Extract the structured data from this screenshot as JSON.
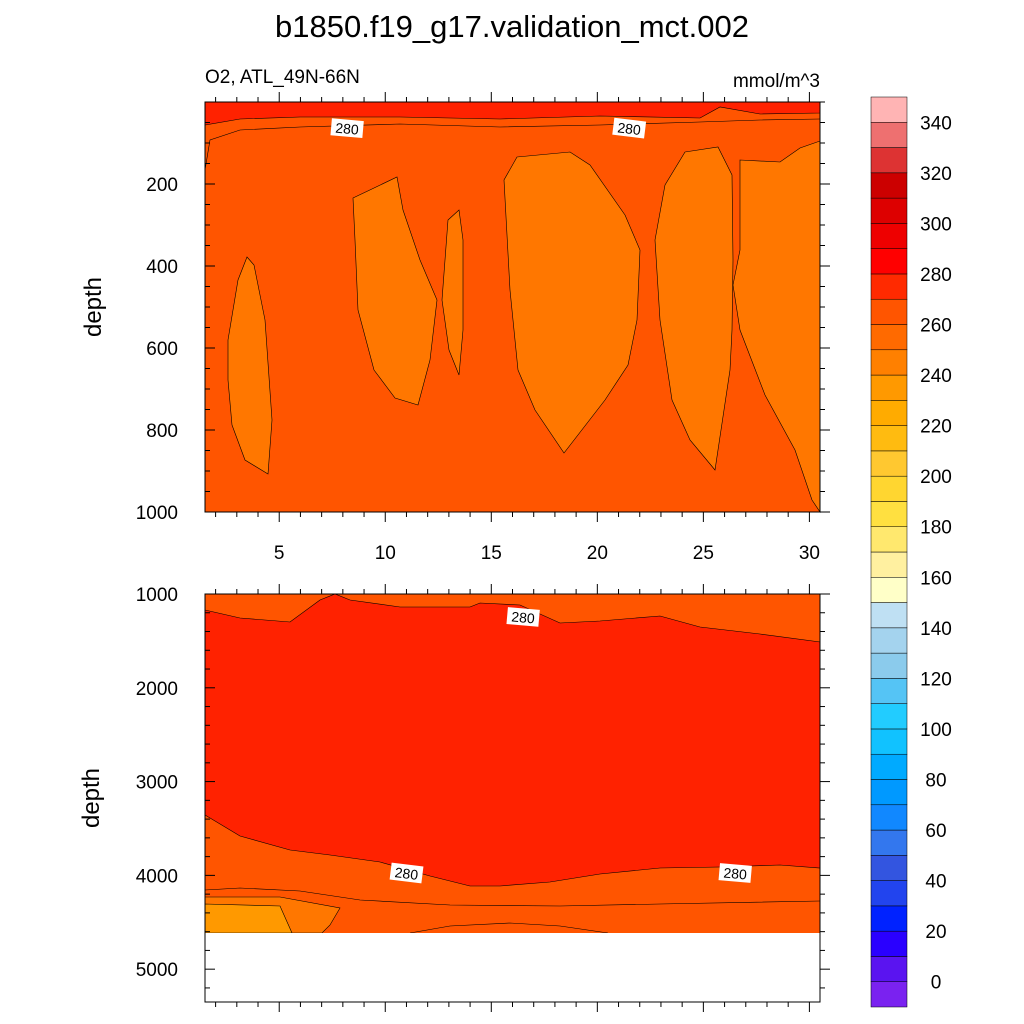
{
  "title": "b1850.f19_g17.validation_mct.002",
  "colors": {
    "fill_above_280": "#ff2200",
    "fill_260_280": "#ff5500",
    "fill_250_260": "#ff7700",
    "fill_240_250": "#ff9900",
    "contour_line": "#000000",
    "missing": "#ffffff"
  },
  "chart_data": [
    {
      "type": "heatmap",
      "panel": "upper",
      "subtitle_left": "O2, ATL_49N-66N",
      "subtitle_right": "mmol/m^3",
      "xlabel": "",
      "ylabel": "depth",
      "xlim": [
        1.5,
        30.5
      ],
      "ylim": [
        1000,
        0
      ],
      "x_ticks": [
        5,
        10,
        15,
        20,
        25,
        30
      ],
      "y_ticks": [
        200,
        400,
        600,
        800,
        1000
      ],
      "contour_labels": [
        {
          "text": "280",
          "x": 8.2,
          "y": 65
        },
        {
          "text": "280",
          "x": 21.5,
          "y": 65
        }
      ]
    },
    {
      "type": "heatmap",
      "panel": "lower",
      "subtitle_left": "",
      "subtitle_right": "",
      "xlabel": "",
      "ylabel": "depth",
      "xlim": [
        1.5,
        30.5
      ],
      "ylim": [
        5350,
        1000
      ],
      "y_ticks": [
        1000,
        2000,
        3000,
        4000,
        5000
      ],
      "missing_below_depth": 4600,
      "contour_labels": [
        {
          "text": "280",
          "x": 16.5,
          "y": 1250
        },
        {
          "text": "280",
          "x": 11.0,
          "y": 3980
        },
        {
          "text": "280",
          "x": 26.5,
          "y": 3980
        }
      ]
    }
  ],
  "colorbar": {
    "labels": [
      "0",
      "20",
      "40",
      "60",
      "80",
      "100",
      "120",
      "140",
      "160",
      "180",
      "200",
      "220",
      "240",
      "260",
      "280",
      "300",
      "320",
      "340"
    ],
    "colors": [
      "#7a22f0",
      "#5a14f0",
      "#2a00ff",
      "#0022ff",
      "#2244ee",
      "#3355e0",
      "#3377ee",
      "#1188ff",
      "#0099ff",
      "#00aaff",
      "#11c2ff",
      "#22ccff",
      "#55c4f5",
      "#8bcbec",
      "#a4d3ee",
      "#bfe0f3",
      "#ffffc8",
      "#fff0a0",
      "#ffe86e",
      "#ffe040",
      "#ffd630",
      "#ffc830",
      "#ffbb10",
      "#ffab00",
      "#ff9900",
      "#ff8000",
      "#ff6a00",
      "#ff5500",
      "#ff2a00",
      "#ff0000",
      "#ee0000",
      "#dd0000",
      "#cc0000",
      "#dd3333",
      "#ee7070",
      "#ffb4b4"
    ]
  }
}
